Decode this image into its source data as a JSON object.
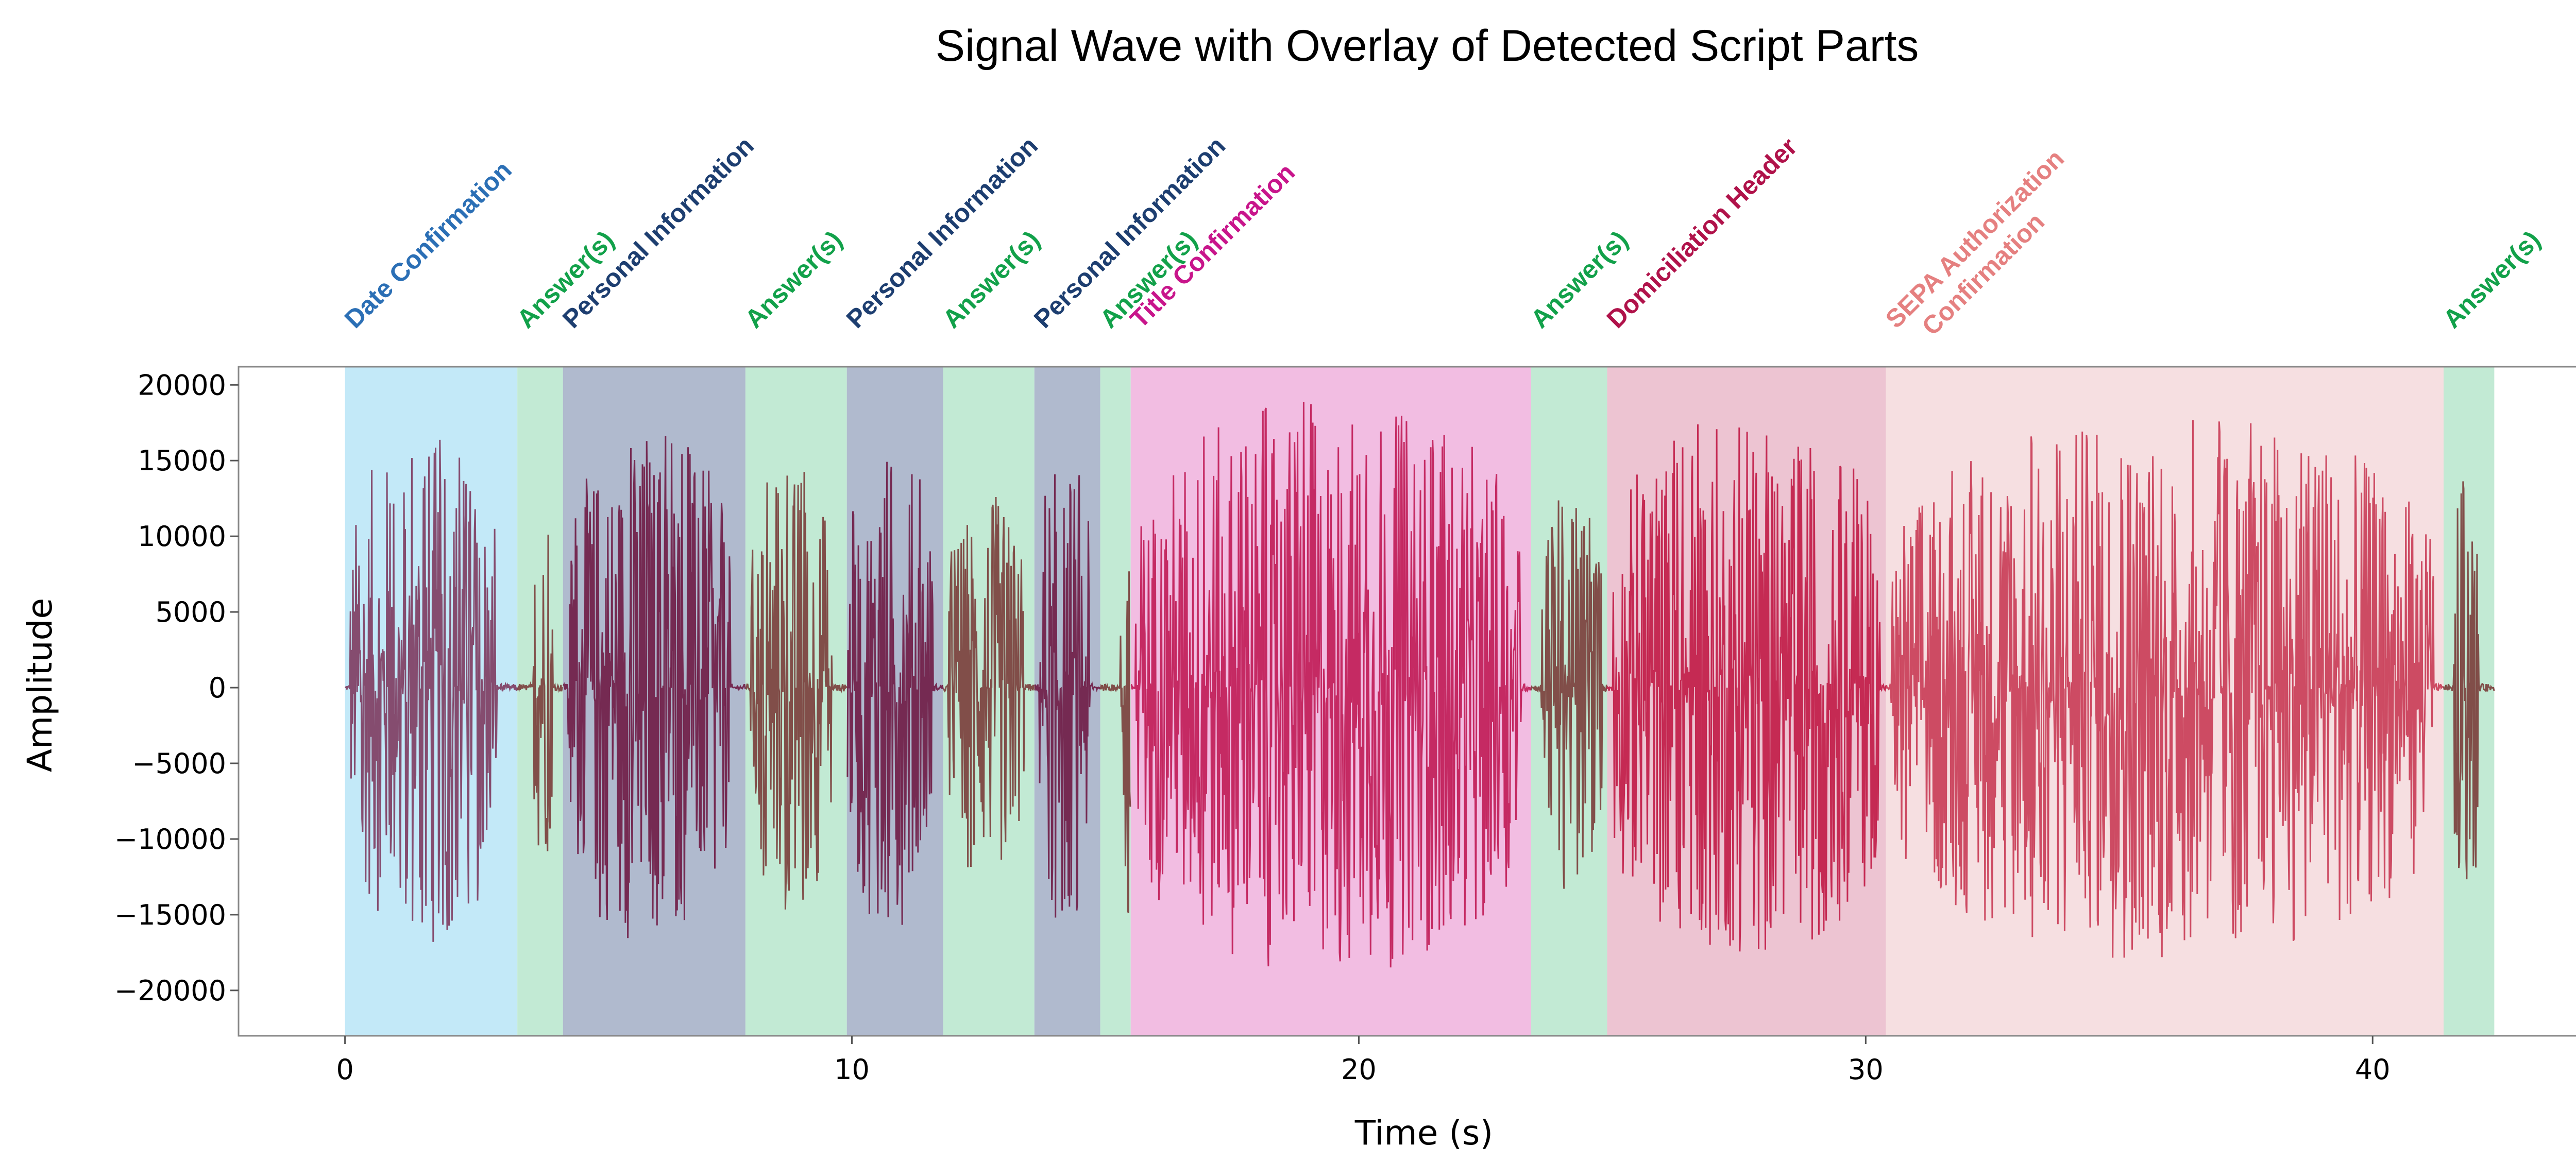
{
  "chart_data": {
    "type": "area",
    "title": "Signal Wave with Overlay of Detected Script Parts",
    "xlabel": "Time (s)",
    "ylabel": "Amplitude",
    "xlim": [
      -2.1,
      44.5
    ],
    "ylim": [
      -23000,
      21200
    ],
    "xticks": [
      0,
      10,
      20,
      30,
      40
    ],
    "yticks": [
      -20000,
      -15000,
      -10000,
      -5000,
      0,
      5000,
      10000,
      15000,
      20000
    ],
    "grid": false,
    "segments": [
      {
        "label": "Date Confirmation",
        "start": 0.0,
        "end": 3.4,
        "bg": "#c3e9f8",
        "label_color": "#2b6fb5",
        "wave_color": "#7e3b5f"
      },
      {
        "label": "Answer(s)",
        "start": 3.4,
        "end": 4.3,
        "bg": "#c2ead4",
        "label_color": "#12a14a",
        "wave_color": "#7a3d3a"
      },
      {
        "label": "Personal Information",
        "start": 4.3,
        "end": 7.9,
        "bg": "#b0bace",
        "label_color": "#1d3e70",
        "wave_color": "#6f1b45"
      },
      {
        "label": "Answer(s)",
        "start": 7.9,
        "end": 9.9,
        "bg": "#c2ead4",
        "label_color": "#12a14a",
        "wave_color": "#7a3d3a"
      },
      {
        "label": "Personal Information",
        "start": 9.9,
        "end": 11.8,
        "bg": "#b0bace",
        "label_color": "#1d3e70",
        "wave_color": "#6f1b45"
      },
      {
        "label": "Answer(s)",
        "start": 11.8,
        "end": 13.6,
        "bg": "#c2ead4",
        "label_color": "#12a14a",
        "wave_color": "#7a3d3a"
      },
      {
        "label": "Personal Information",
        "start": 13.6,
        "end": 14.9,
        "bg": "#b0bace",
        "label_color": "#1d3e70",
        "wave_color": "#6f1b45"
      },
      {
        "label": "Answer(s)",
        "start": 14.9,
        "end": 15.5,
        "bg": "#c2ead4",
        "label_color": "#12a14a",
        "wave_color": "#7a3d3a"
      },
      {
        "label": "Title Confirmation",
        "start": 15.5,
        "end": 23.4,
        "bg": "#f2bde2",
        "label_color": "#c8158b",
        "wave_color": "#c01a55"
      },
      {
        "label": "Answer(s)",
        "start": 23.4,
        "end": 24.9,
        "bg": "#c2ead4",
        "label_color": "#12a14a",
        "wave_color": "#7a3d3a"
      },
      {
        "label": "Domiciliation Header",
        "start": 24.9,
        "end": 30.4,
        "bg": "#edc4d2",
        "label_color": "#b0124a",
        "wave_color": "#c01a45"
      },
      {
        "label": "SEPA Authorization\nConfirmation",
        "start": 30.4,
        "end": 41.4,
        "bg": "#f6dfe1",
        "label_color": "#e58080",
        "wave_color": "#c93b55"
      },
      {
        "label": "Answer(s)",
        "start": 41.4,
        "end": 42.4,
        "bg": "#c2ead4",
        "label_color": "#12a14a",
        "wave_color": "#7a3d3a"
      }
    ],
    "series": [
      {
        "values_note_peak_amplitude": 19000
      }
    ]
  }
}
